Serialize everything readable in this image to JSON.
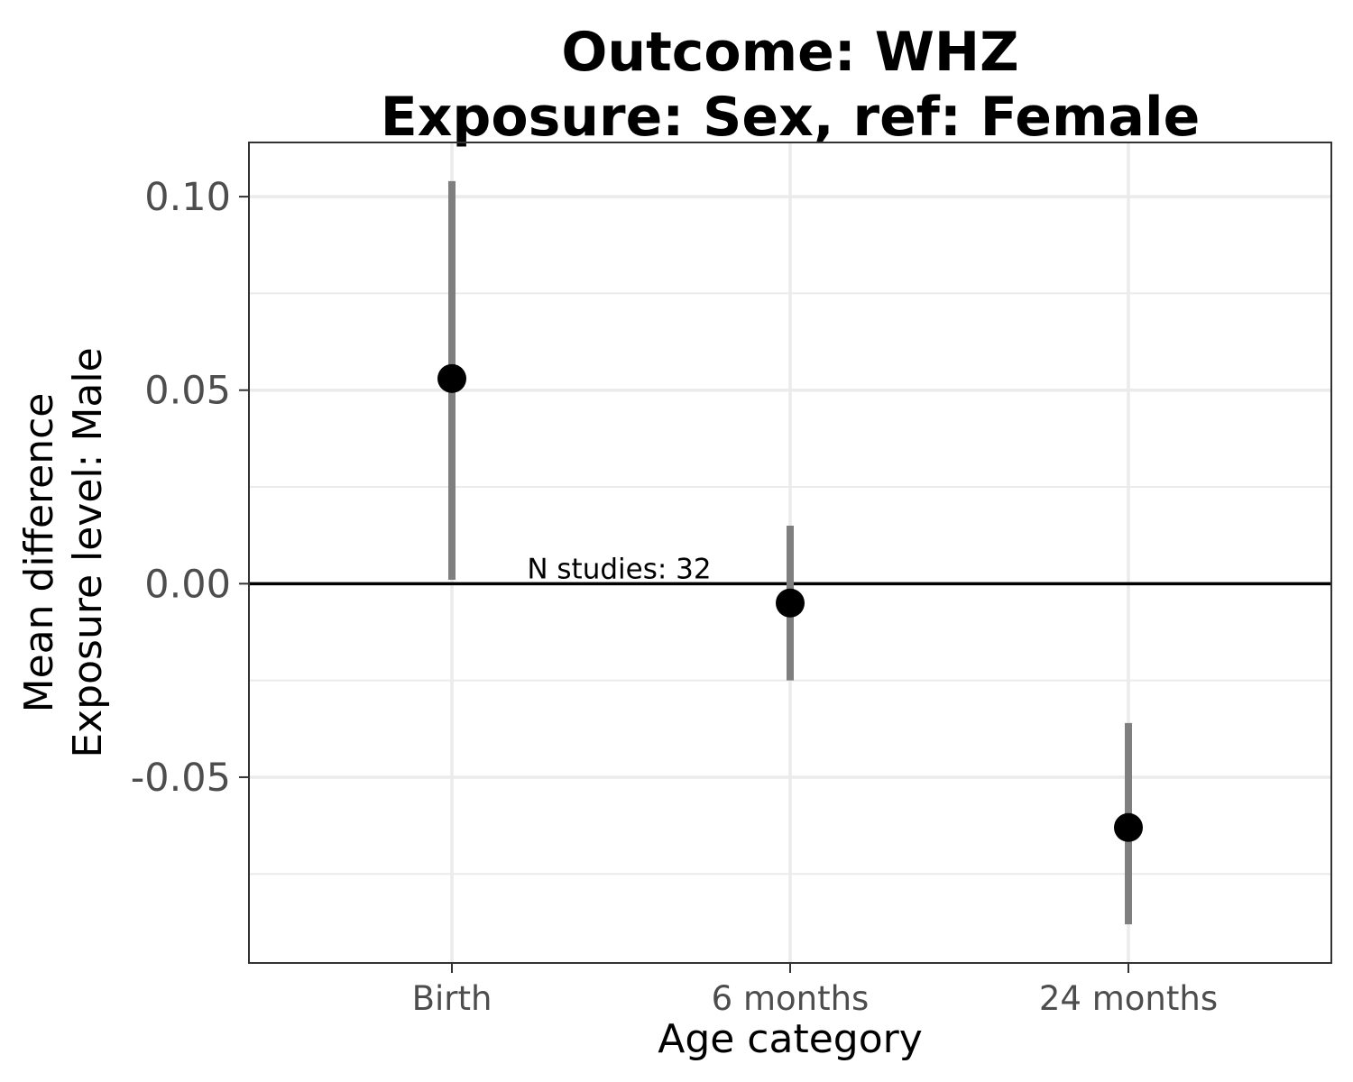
{
  "chart_data": {
    "type": "scatter",
    "title_lines": [
      "Outcome: WHZ",
      "Exposure: Sex, ref: Female"
    ],
    "xlabel": "Age category",
    "ylabel_lines": [
      "Mean difference",
      "Exposure level: Male"
    ],
    "categories": [
      "Birth",
      "6 months",
      "24 months"
    ],
    "points": [
      {
        "category": "Birth",
        "estimate": 0.053,
        "ci_lower": 0.001,
        "ci_upper": 0.104
      },
      {
        "category": "6 months",
        "estimate": -0.005,
        "ci_lower": -0.025,
        "ci_upper": 0.015
      },
      {
        "category": "24 months",
        "estimate": -0.063,
        "ci_lower": -0.088,
        "ci_upper": -0.036
      }
    ],
    "ylim": [
      -0.098,
      0.114
    ],
    "y_ticks": [
      {
        "value": -0.05,
        "label": "-0.05"
      },
      {
        "value": 0.0,
        "label": "0.00"
      },
      {
        "value": 0.05,
        "label": "0.05"
      },
      {
        "value": 0.1,
        "label": "0.10"
      }
    ],
    "y_minor_ticks": [
      -0.075,
      -0.025,
      0.025,
      0.075
    ],
    "reference_line": 0,
    "annotation": {
      "text": "N studies: 32",
      "x_category_pos": 1.5,
      "y": 0.0
    },
    "grid": true,
    "colors": {
      "point": "#000000",
      "ci": "#7f7f7f",
      "grid": "#ebebeb",
      "reference": "#000000",
      "border": "#333333"
    }
  }
}
